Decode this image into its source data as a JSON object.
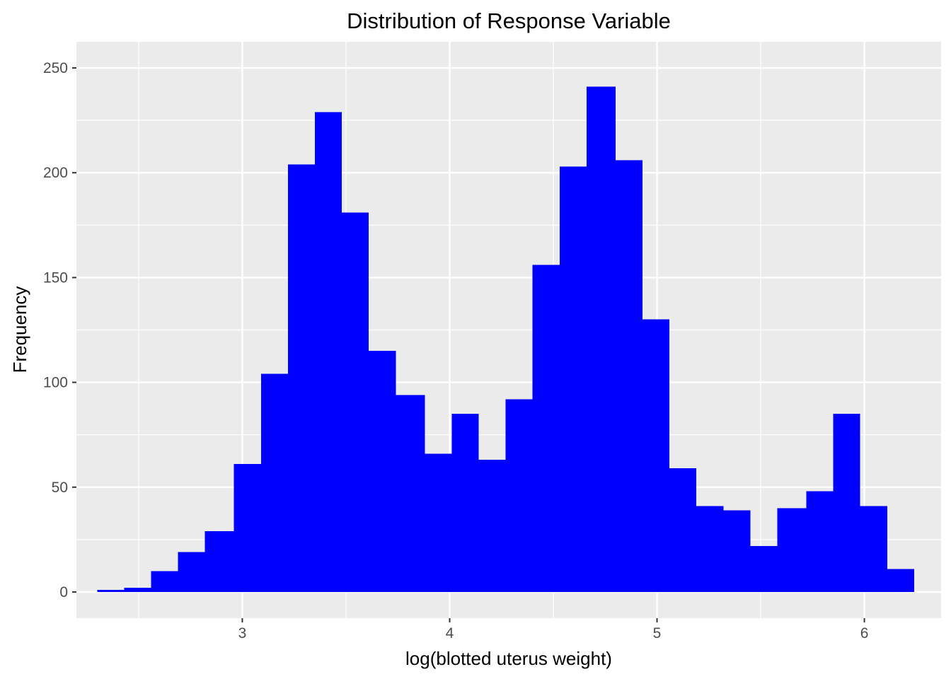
{
  "chart_data": {
    "type": "bar",
    "title": "Distribution of Response Variable",
    "xlabel": "log(blotted uterus weight)",
    "ylabel": "Frequency",
    "xlim": [
      2.2,
      6.37
    ],
    "ylim": [
      -12.5,
      262.5
    ],
    "xticks": [
      3,
      4,
      5,
      6
    ],
    "yticks": [
      0,
      50,
      100,
      150,
      200,
      250
    ],
    "grid": true,
    "bar_color": "#0000FF",
    "panel_color": "#EBEBEB",
    "bins": [
      {
        "x0": 2.3,
        "x1": 2.43,
        "count": 1
      },
      {
        "x0": 2.43,
        "x1": 2.56,
        "count": 2
      },
      {
        "x0": 2.56,
        "x1": 2.69,
        "count": 10
      },
      {
        "x0": 2.69,
        "x1": 2.82,
        "count": 19
      },
      {
        "x0": 2.82,
        "x1": 2.96,
        "count": 29
      },
      {
        "x0": 2.96,
        "x1": 3.09,
        "count": 61
      },
      {
        "x0": 3.09,
        "x1": 3.22,
        "count": 104
      },
      {
        "x0": 3.22,
        "x1": 3.35,
        "count": 204
      },
      {
        "x0": 3.35,
        "x1": 3.48,
        "count": 229
      },
      {
        "x0": 3.48,
        "x1": 3.61,
        "count": 181
      },
      {
        "x0": 3.61,
        "x1": 3.74,
        "count": 115
      },
      {
        "x0": 3.74,
        "x1": 3.88,
        "count": 94
      },
      {
        "x0": 3.88,
        "x1": 4.01,
        "count": 66
      },
      {
        "x0": 4.01,
        "x1": 4.14,
        "count": 85
      },
      {
        "x0": 4.14,
        "x1": 4.27,
        "count": 63
      },
      {
        "x0": 4.27,
        "x1": 4.4,
        "count": 92
      },
      {
        "x0": 4.4,
        "x1": 4.53,
        "count": 156
      },
      {
        "x0": 4.53,
        "x1": 4.66,
        "count": 203
      },
      {
        "x0": 4.66,
        "x1": 4.8,
        "count": 241
      },
      {
        "x0": 4.8,
        "x1": 4.93,
        "count": 206
      },
      {
        "x0": 4.93,
        "x1": 5.06,
        "count": 130
      },
      {
        "x0": 5.06,
        "x1": 5.19,
        "count": 59
      },
      {
        "x0": 5.19,
        "x1": 5.32,
        "count": 41
      },
      {
        "x0": 5.32,
        "x1": 5.45,
        "count": 39
      },
      {
        "x0": 5.45,
        "x1": 5.58,
        "count": 22
      },
      {
        "x0": 5.58,
        "x1": 5.72,
        "count": 40
      },
      {
        "x0": 5.72,
        "x1": 5.85,
        "count": 48
      },
      {
        "x0": 5.85,
        "x1": 5.98,
        "count": 85
      },
      {
        "x0": 5.98,
        "x1": 6.11,
        "count": 41
      },
      {
        "x0": 6.11,
        "x1": 6.24,
        "count": 11
      }
    ]
  }
}
